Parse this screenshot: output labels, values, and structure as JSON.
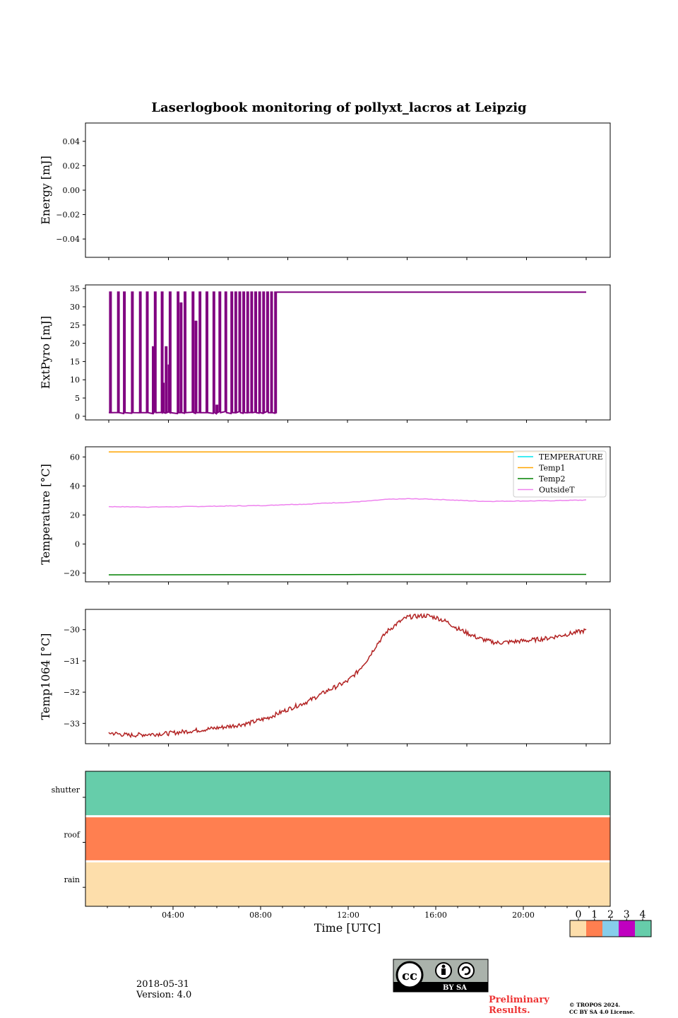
{
  "title": "Laserlogbook monitoring of pollyxt_lacros at Leipzig",
  "chart_data": [
    {
      "type": "line",
      "ylabel": "Energy [mJ]",
      "ylim": [
        -0.055,
        0.055
      ],
      "yticks": [
        0.04,
        0.02,
        0.0,
        -0.02,
        -0.04
      ],
      "ytick_labels": [
        "0.04",
        "0.02",
        "0.00",
        "−0.02",
        "−0.04"
      ],
      "series": []
    },
    {
      "type": "line",
      "ylabel": "ExtPyro [mJ]",
      "ylim": [
        -1,
        36
      ],
      "yticks": [
        35,
        30,
        25,
        20,
        15,
        10,
        5,
        0
      ],
      "ytick_labels": [
        "35",
        "30",
        "25",
        "20",
        "15",
        "10",
        "5",
        "0"
      ],
      "series": [
        {
          "color": "#800080",
          "note_pattern": "rapid switching between ~1 and ~34 mJ from 00:00 to ~08:30 UTC, then constant ~34 mJ",
          "spikes_x_hours": [
            0.05,
            0.45,
            0.75,
            1.15,
            1.55,
            1.9,
            2.3,
            2.65,
            3.05,
            3.45,
            3.8,
            4.2,
            4.55,
            4.9,
            5.25,
            5.55,
            5.85,
            6.15,
            6.35,
            6.55,
            6.75,
            6.95,
            7.15,
            7.35,
            7.55,
            7.75,
            7.95,
            8.15,
            8.35
          ],
          "partial_spikes": [
            {
              "x_hour": 2.2,
              "y": 19
            },
            {
              "x_hour": 2.7,
              "y": 9
            },
            {
              "x_hour": 2.85,
              "y": 19
            },
            {
              "x_hour": 3.0,
              "y": 14
            },
            {
              "x_hour": 3.6,
              "y": 31
            },
            {
              "x_hour": 4.35,
              "y": 26
            },
            {
              "x_hour": 5.4,
              "y": 3
            }
          ],
          "low_y": 1,
          "high_y": 34,
          "steady": [
            [
              8.5,
              34
            ],
            [
              24,
              34
            ]
          ]
        }
      ]
    },
    {
      "type": "line",
      "ylabel": "Temperature [°C]",
      "ylim": [
        -26,
        67
      ],
      "yticks": [
        60,
        40,
        20,
        0,
        -20
      ],
      "ytick_labels": [
        "60",
        "40",
        "20",
        "0",
        "−20"
      ],
      "legend": "top-right",
      "series": [
        {
          "name": "TEMPERATURE",
          "color": "#00e5ee",
          "x": [],
          "y": []
        },
        {
          "name": "Temp1",
          "color": "#ffa500",
          "x": [
            0,
            24
          ],
          "y": [
            63.5,
            63.5
          ]
        },
        {
          "name": "Temp2",
          "color": "#008000",
          "x": [
            0,
            6,
            12,
            18,
            24
          ],
          "y": [
            -21.2,
            -21.1,
            -21.0,
            -20.9,
            -20.9
          ]
        },
        {
          "name": "OutsideT",
          "color": "#ee82ee",
          "x": [
            0,
            2,
            4,
            6,
            8,
            9,
            10,
            11,
            12,
            13,
            14,
            15,
            16,
            17,
            18,
            19,
            20,
            21,
            22,
            23,
            24
          ],
          "y": [
            25.8,
            25.5,
            25.8,
            26.2,
            26.6,
            27.3,
            27.5,
            28.3,
            28.7,
            29.6,
            30.8,
            31.2,
            31.0,
            30.5,
            29.9,
            29.4,
            29.6,
            29.7,
            29.8,
            30.1,
            30.3
          ]
        }
      ]
    },
    {
      "type": "line",
      "ylabel": "Temp1064 [°C]",
      "ylim": [
        -33.65,
        -29.35
      ],
      "yticks": [
        -30,
        -31,
        -32,
        -33
      ],
      "ytick_labels": [
        "−30",
        "−31",
        "−32",
        "−33"
      ],
      "series": [
        {
          "color": "#b22222",
          "x": [
            0,
            1,
            2,
            3,
            4,
            5,
            6,
            7,
            8,
            9,
            10,
            11,
            12,
            12.5,
            13,
            13.5,
            14,
            14.5,
            15,
            15.5,
            16,
            16.5,
            17,
            17.5,
            18,
            18.5,
            19,
            19.5,
            20,
            21,
            22,
            23,
            24
          ],
          "y": [
            -33.3,
            -33.38,
            -33.35,
            -33.32,
            -33.25,
            -33.18,
            -33.1,
            -33.0,
            -32.82,
            -32.55,
            -32.3,
            -31.95,
            -31.65,
            -31.35,
            -30.95,
            -30.45,
            -30.05,
            -29.8,
            -29.6,
            -29.57,
            -29.55,
            -29.62,
            -29.75,
            -29.95,
            -30.1,
            -30.25,
            -30.35,
            -30.42,
            -30.4,
            -30.35,
            -30.28,
            -30.15,
            -30.02
          ]
        }
      ]
    },
    {
      "type": "heatmap",
      "row_labels": [
        "shutter",
        "roof",
        "rain"
      ],
      "row_values": [
        4,
        1,
        0
      ],
      "x_ticks_hours": [
        4,
        8,
        12,
        16,
        20
      ],
      "x_tick_labels": [
        "04:00",
        "08:00",
        "12:00",
        "16:00",
        "20:00"
      ],
      "xlabel": "Time [UTC]"
    }
  ],
  "colorbar": {
    "labels": [
      "0",
      "1",
      "2",
      "3",
      "4"
    ],
    "colors": [
      "#fddeab",
      "#ff7f50",
      "#87ceeb",
      "#c000c0",
      "#66cdaa"
    ]
  },
  "footer": {
    "date": "2018-05-31",
    "version": "Version: 4.0",
    "preliminary_line1": "Preliminary",
    "preliminary_line2": "Results.",
    "copyright_line1": "© TROPOS 2024.",
    "copyright_line2": "CC BY SA 4.0 License.",
    "license_logo_text": "BY  SA",
    "license_logo_cc": "cc",
    "preliminary_color": "#ee3333"
  }
}
